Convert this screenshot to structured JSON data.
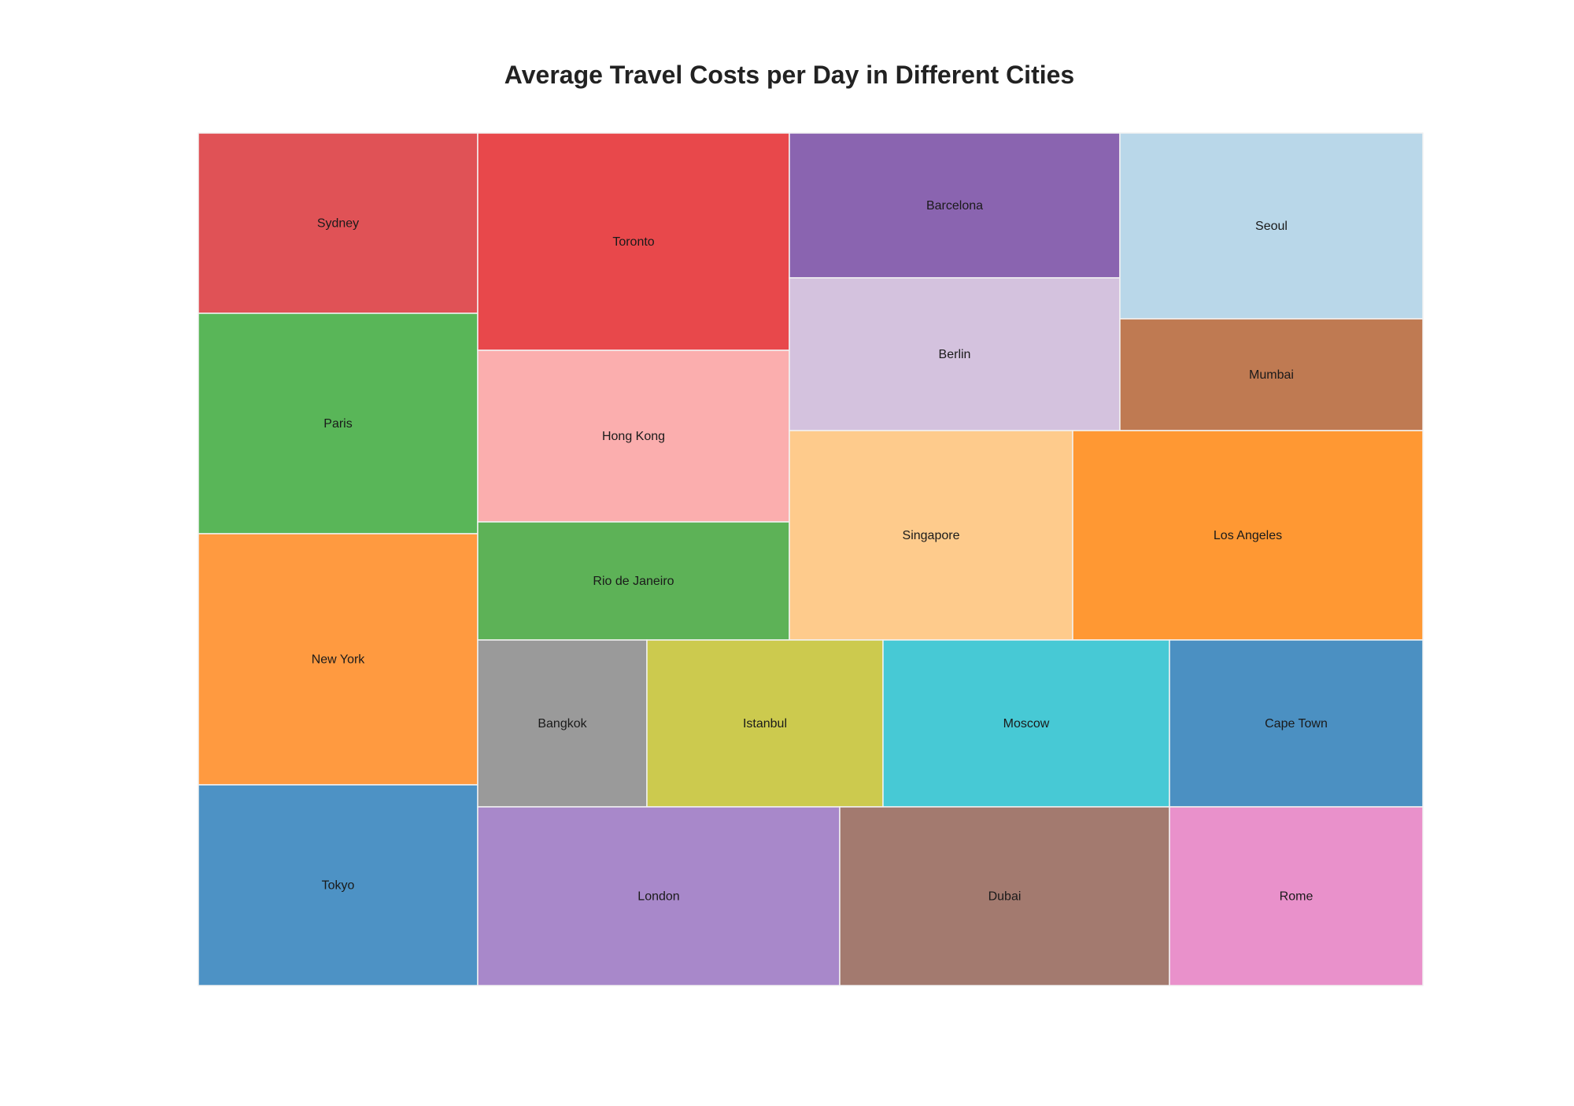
{
  "chart_data": {
    "type": "treemap",
    "title": "Average Travel Costs per Day in Different Cities",
    "cells": [
      {
        "name": "Sydney",
        "color": "#e05256"
      },
      {
        "name": "Paris",
        "color": "#59b658"
      },
      {
        "name": "New York",
        "color": "#ff9a40"
      },
      {
        "name": "Tokyo",
        "color": "#4d92c5"
      },
      {
        "name": "Toronto",
        "color": "#e8484b"
      },
      {
        "name": "Hong Kong",
        "color": "#fbaeae"
      },
      {
        "name": "Rio de Janeiro",
        "color": "#5db257"
      },
      {
        "name": "Barcelona",
        "color": "#8a64b0"
      },
      {
        "name": "Berlin",
        "color": "#d4c2de"
      },
      {
        "name": "Seoul",
        "color": "#b9d7e9"
      },
      {
        "name": "Mumbai",
        "color": "#bf7a52"
      },
      {
        "name": "Singapore",
        "color": "#fecb8c"
      },
      {
        "name": "Los Angeles",
        "color": "#ff9833"
      },
      {
        "name": "Bangkok",
        "color": "#9a9a9a"
      },
      {
        "name": "Istanbul",
        "color": "#ccca4e"
      },
      {
        "name": "Moscow",
        "color": "#47c9d5"
      },
      {
        "name": "Cape Town",
        "color": "#4b90c2"
      },
      {
        "name": "London",
        "color": "#a888ca"
      },
      {
        "name": "Dubai",
        "color": "#a37a6f"
      },
      {
        "name": "Rome",
        "color": "#e991cb"
      }
    ]
  }
}
